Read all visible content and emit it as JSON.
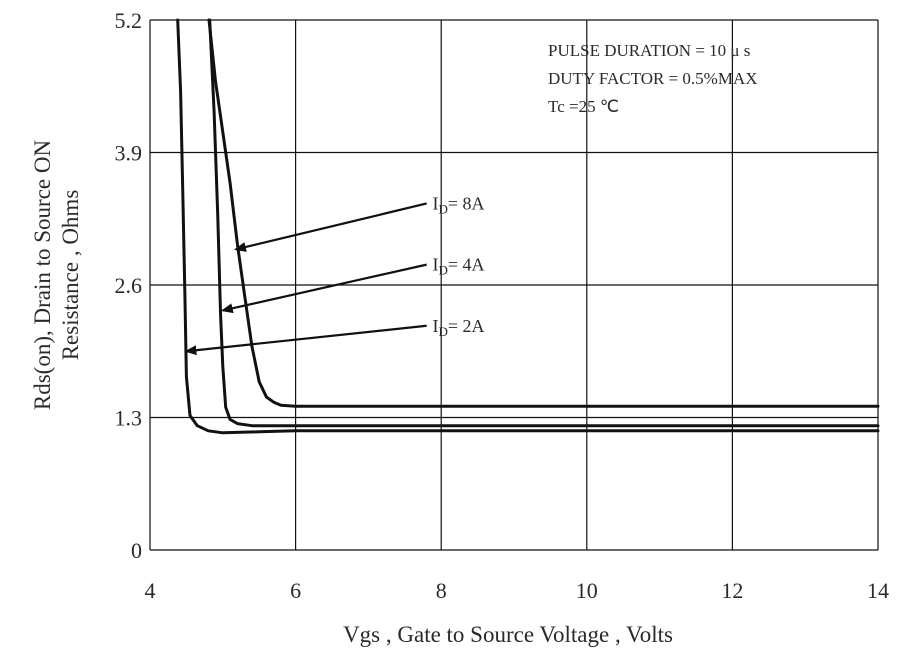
{
  "chart_data": {
    "type": "line",
    "title": "",
    "xlabel": "Vgs , Gate to Source Voltage ,   Volts",
    "ylabel_line1": "Rds(on), Drain to Source ON",
    "ylabel_line2": "Resistance , Ohms",
    "xlim": [
      4,
      14
    ],
    "ylim": [
      0,
      5.2
    ],
    "xticks": [
      4,
      6,
      8,
      10,
      12,
      14
    ],
    "xtick_labels": [
      "4",
      "6",
      "8",
      "10",
      "12",
      "14"
    ],
    "yticks": [
      0,
      1.3,
      2.6,
      3.9,
      5.2
    ],
    "ytick_labels": [
      "0",
      "1.3",
      "2.6",
      "3.9",
      "5.2"
    ],
    "grid": true,
    "annotations": [
      "PULSE    DURATION = 10 μ s",
      "DUTY    FACTOR = 0.5%MAX",
      "Tc =25  ℃"
    ],
    "series": [
      {
        "name": "ID= 2A",
        "label_main": "I",
        "label_sub": "D",
        "label_rest": "= 2A",
        "x": [
          4.38,
          4.42,
          4.45,
          4.48,
          4.5,
          4.55,
          4.65,
          4.8,
          5.0,
          5.5,
          6.0,
          8.0,
          10.0,
          12.0,
          14.0
        ],
        "y": [
          5.2,
          4.5,
          3.5,
          2.5,
          1.7,
          1.32,
          1.22,
          1.17,
          1.15,
          1.16,
          1.17,
          1.17,
          1.17,
          1.17,
          1.17
        ]
      },
      {
        "name": "ID= 4A",
        "label_main": "I",
        "label_sub": "D",
        "label_rest": "= 4A",
        "x": [
          4.82,
          4.88,
          4.93,
          4.97,
          5.0,
          5.04,
          5.1,
          5.2,
          5.4,
          6.0,
          8.0,
          10.0,
          12.0,
          14.0
        ],
        "y": [
          5.2,
          4.3,
          3.3,
          2.3,
          1.8,
          1.4,
          1.28,
          1.24,
          1.22,
          1.22,
          1.22,
          1.22,
          1.22,
          1.22
        ]
      },
      {
        "name": "ID= 8A",
        "label_main": "I",
        "label_sub": "D",
        "label_rest": "= 8A",
        "x": [
          4.81,
          4.9,
          5.0,
          5.1,
          5.2,
          5.3,
          5.4,
          5.5,
          5.6,
          5.7,
          5.8,
          6.0,
          7.0,
          8.0,
          10.0,
          12.0,
          14.0
        ],
        "y": [
          5.2,
          4.6,
          4.1,
          3.6,
          3.0,
          2.5,
          2.0,
          1.65,
          1.5,
          1.45,
          1.42,
          1.41,
          1.41,
          1.41,
          1.41,
          1.41,
          1.41
        ]
      }
    ]
  }
}
